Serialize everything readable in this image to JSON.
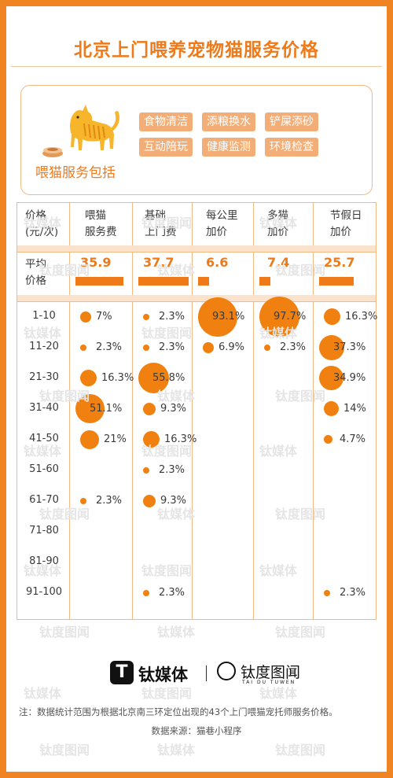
{
  "page": {
    "title": "北京上门喂养宠物猫服务价格"
  },
  "services": {
    "caption": "喂猫服务包括",
    "tags": [
      "食物清洁",
      "添粮换水",
      "铲屎添砂",
      "互动陪玩",
      "健康监测",
      "环境检查"
    ]
  },
  "table": {
    "headers": [
      [
        "价格",
        "(元/次)"
      ],
      [
        "喂猫",
        "服务费"
      ],
      [
        "基础",
        "上门费"
      ],
      [
        "每公里",
        "加价"
      ],
      [
        "多猫",
        "加价"
      ],
      [
        "节假日",
        "加价"
      ]
    ],
    "avg_label": [
      "平均",
      "价格"
    ],
    "avg_values": [
      "35.9",
      "37.7",
      "6.6",
      "7.4",
      "25.7"
    ],
    "ranges": [
      "1-10",
      "11-20",
      "21-30",
      "31-40",
      "41-50",
      "51-60",
      "61-70",
      "71-80",
      "81-90",
      "91-100"
    ]
  },
  "chart_data": {
    "type": "table",
    "averages": {
      "categories": [
        "喂猫服务费",
        "基础上门费",
        "每公里加价",
        "多猫加价",
        "节假日加价"
      ],
      "values": [
        35.9,
        37.7,
        6.6,
        7.4,
        25.7
      ]
    },
    "distribution_unit": "%",
    "price_ranges": [
      "1-10",
      "11-20",
      "21-30",
      "31-40",
      "41-50",
      "51-60",
      "61-70",
      "71-80",
      "81-90",
      "91-100"
    ],
    "series": [
      {
        "name": "喂猫服务费",
        "values": [
          7,
          2.3,
          16.3,
          51.1,
          21,
          null,
          2.3,
          null,
          null,
          null
        ]
      },
      {
        "name": "基础上门费",
        "values": [
          2.3,
          2.3,
          55.8,
          9.3,
          16.3,
          2.3,
          9.3,
          null,
          null,
          2.3
        ]
      },
      {
        "name": "每公里加价",
        "values": [
          93.1,
          6.9,
          null,
          null,
          null,
          null,
          null,
          null,
          null,
          null
        ]
      },
      {
        "name": "多猫加价",
        "values": [
          97.7,
          2.3,
          null,
          null,
          null,
          null,
          null,
          null,
          null,
          null
        ]
      },
      {
        "name": "节假日加价",
        "values": [
          16.3,
          37.3,
          34.9,
          14,
          4.7,
          null,
          null,
          null,
          null,
          2.3
        ]
      }
    ],
    "value_labels": [
      [
        "7%",
        "2.3%",
        "16.3%",
        "51.1%",
        "21%",
        null,
        "2.3%",
        null,
        null,
        null
      ],
      [
        "2.3%",
        "2.3%",
        "55.8%",
        "9.3%",
        "16.3%",
        "2.3%",
        "9.3%",
        null,
        null,
        "2.3%"
      ],
      [
        "93.1%",
        "6.9%",
        null,
        null,
        null,
        null,
        null,
        null,
        null,
        null
      ],
      [
        "97.7%",
        "2.3%",
        null,
        null,
        null,
        null,
        null,
        null,
        null,
        null
      ],
      [
        "16.3%",
        "37.3%",
        "34.9%",
        "14%",
        "4.7%",
        null,
        null,
        null,
        null,
        "2.3%"
      ]
    ]
  },
  "brand": {
    "tmt_glyph": "T",
    "tmt_name": "钛媒体",
    "tdtw_name": "钛度图闻",
    "tdtw_sub": "TAI DU TUWEN"
  },
  "watermark": {
    "tmt": "钛媒体",
    "tdtw": "钛度图闻"
  },
  "footer": {
    "note": "注：数据统计范围为根据北京南三环定位出现的43个上门喂猫宠托师服务价格。",
    "source": "数据来源：猫巷小程序"
  },
  "colors": {
    "accent": "#ee7a1a",
    "dot": "#f0800f",
    "tag_bg": "#f3ae78",
    "border": "#f08422"
  }
}
